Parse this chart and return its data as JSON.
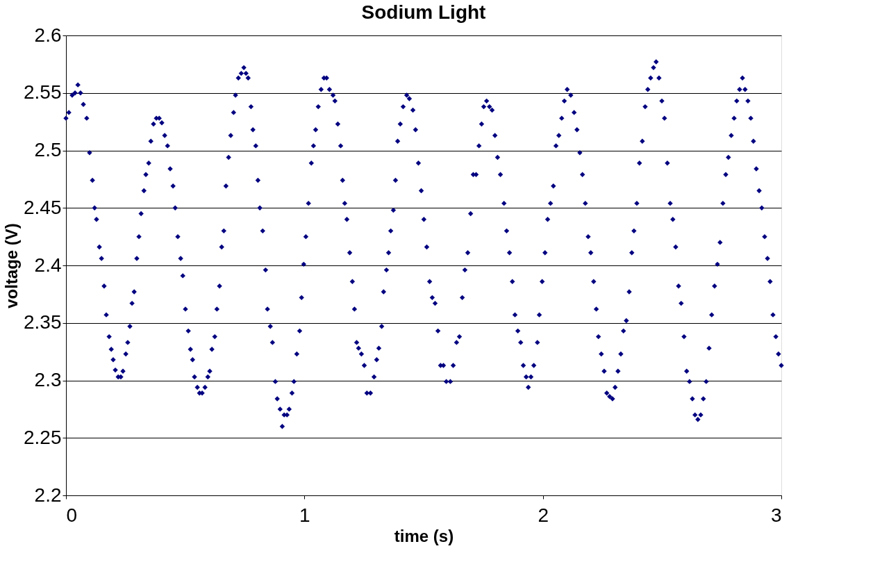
{
  "chart_data": {
    "type": "scatter",
    "title": "Sodium Light",
    "xlabel": "time (s)",
    "ylabel": "voltage (V)",
    "x": [
      0,
      0.012,
      0.026,
      0.038,
      0.05,
      0.061,
      0.073,
      0.087,
      0.099,
      0.111,
      0.12,
      0.128,
      0.14,
      0.149,
      0.16,
      0.169,
      0.181,
      0.19,
      0.198,
      0.207,
      0.219,
      0.23,
      0.239,
      0.251,
      0.259,
      0.268,
      0.277,
      0.286,
      0.297,
      0.306,
      0.315,
      0.327,
      0.335,
      0.347,
      0.356,
      0.367,
      0.379,
      0.391,
      0.402,
      0.414,
      0.426,
      0.437,
      0.449,
      0.458,
      0.469,
      0.481,
      0.49,
      0.501,
      0.513,
      0.522,
      0.531,
      0.539,
      0.551,
      0.56,
      0.571,
      0.583,
      0.595,
      0.603,
      0.612,
      0.624,
      0.633,
      0.644,
      0.653,
      0.662,
      0.671,
      0.682,
      0.691,
      0.703,
      0.711,
      0.723,
      0.735,
      0.746,
      0.755,
      0.764,
      0.776,
      0.784,
      0.796,
      0.805,
      0.813,
      0.825,
      0.837,
      0.845,
      0.857,
      0.866,
      0.878,
      0.886,
      0.898,
      0.907,
      0.915,
      0.927,
      0.936,
      0.948,
      0.956,
      0.968,
      0.98,
      0.988,
      0.997,
      1.006,
      1.017,
      1.029,
      1.038,
      1.047,
      1.058,
      1.07,
      1.082,
      1.093,
      1.105,
      1.12,
      1.128,
      1.14,
      1.152,
      1.16,
      1.169,
      1.178,
      1.19,
      1.201,
      1.21,
      1.219,
      1.227,
      1.239,
      1.251,
      1.262,
      1.277,
      1.292,
      1.303,
      1.312,
      1.324,
      1.332,
      1.344,
      1.353,
      1.362,
      1.373,
      1.382,
      1.391,
      1.402,
      1.414,
      1.429,
      1.44,
      1.455,
      1.466,
      1.478,
      1.49,
      1.501,
      1.513,
      1.525,
      1.536,
      1.548,
      1.56,
      1.571,
      1.583,
      1.595,
      1.612,
      1.624,
      1.638,
      1.65,
      1.662,
      1.673,
      1.685,
      1.697,
      1.708,
      1.72,
      1.732,
      1.743,
      1.752,
      1.764,
      1.776,
      1.787,
      1.799,
      1.81,
      1.822,
      1.837,
      1.848,
      1.86,
      1.872,
      1.883,
      1.895,
      1.907,
      1.918,
      1.93,
      1.939,
      1.95,
      1.962,
      1.977,
      1.985,
      1.997,
      2.009,
      2.02,
      2.032,
      2.044,
      2.055,
      2.067,
      2.079,
      2.09,
      2.102,
      2.117,
      2.131,
      2.143,
      2.155,
      2.166,
      2.178,
      2.19,
      2.201,
      2.213,
      2.224,
      2.233,
      2.245,
      2.257,
      2.268,
      2.28,
      2.292,
      2.303,
      2.315,
      2.327,
      2.338,
      2.35,
      2.362,
      2.373,
      2.382,
      2.394,
      2.405,
      2.417,
      2.429,
      2.44,
      2.452,
      2.464,
      2.475,
      2.487,
      2.499,
      2.51,
      2.522,
      2.534,
      2.545,
      2.557,
      2.569,
      2.58,
      2.592,
      2.603,
      2.615,
      2.627,
      2.638,
      2.65,
      2.662,
      2.673,
      2.685,
      2.697,
      2.708,
      2.72,
      2.732,
      2.743,
      2.755,
      2.767,
      2.778,
      2.79,
      2.802,
      2.813,
      2.825,
      2.837,
      2.848,
      2.86,
      2.872,
      2.883,
      2.895,
      2.907,
      2.918,
      2.93,
      2.942,
      2.953,
      2.965,
      2.977,
      2.988,
      3.0
    ],
    "series": [
      {
        "color": "#000080",
        "values": [
          2.528,
          2.533,
          2.548,
          2.55,
          2.557,
          2.55,
          2.54,
          2.528,
          2.498,
          2.474,
          2.45,
          2.44,
          2.416,
          2.406,
          2.382,
          2.357,
          2.338,
          2.327,
          2.318,
          2.309,
          2.303,
          2.303,
          2.308,
          2.323,
          2.333,
          2.347,
          2.367,
          2.377,
          2.406,
          2.425,
          2.445,
          2.465,
          2.479,
          2.489,
          2.508,
          2.523,
          2.528,
          2.528,
          2.524,
          2.513,
          2.504,
          2.484,
          2.469,
          2.45,
          2.425,
          2.406,
          2.391,
          2.362,
          2.343,
          2.327,
          2.318,
          2.303,
          2.294,
          2.289,
          2.289,
          2.294,
          2.303,
          2.308,
          2.327,
          2.338,
          2.362,
          2.382,
          2.416,
          2.43,
          2.469,
          2.494,
          2.513,
          2.533,
          2.548,
          2.563,
          2.567,
          2.572,
          2.567,
          2.563,
          2.538,
          2.518,
          2.504,
          2.474,
          2.45,
          2.43,
          2.396,
          2.362,
          2.347,
          2.333,
          2.299,
          2.284,
          2.275,
          2.26,
          2.27,
          2.27,
          2.275,
          2.289,
          2.299,
          2.323,
          2.343,
          2.372,
          2.401,
          2.425,
          2.454,
          2.489,
          2.504,
          2.518,
          2.538,
          2.553,
          2.563,
          2.563,
          2.553,
          2.548,
          2.543,
          2.523,
          2.504,
          2.474,
          2.454,
          2.44,
          2.411,
          2.386,
          2.362,
          2.333,
          2.328,
          2.323,
          2.313,
          2.289,
          2.289,
          2.303,
          2.318,
          2.328,
          2.347,
          2.377,
          2.396,
          2.411,
          2.43,
          2.448,
          2.474,
          2.508,
          2.523,
          2.538,
          2.548,
          2.545,
          2.535,
          2.518,
          2.489,
          2.465,
          2.44,
          2.416,
          2.386,
          2.372,
          2.367,
          2.343,
          2.313,
          2.313,
          2.299,
          2.299,
          2.313,
          2.333,
          2.338,
          2.372,
          2.396,
          2.411,
          2.445,
          2.479,
          2.479,
          2.504,
          2.523,
          2.538,
          2.543,
          2.538,
          2.535,
          2.513,
          2.494,
          2.479,
          2.454,
          2.43,
          2.411,
          2.386,
          2.357,
          2.343,
          2.333,
          2.313,
          2.303,
          2.294,
          2.303,
          2.313,
          2.333,
          2.357,
          2.386,
          2.411,
          2.44,
          2.454,
          2.469,
          2.504,
          2.513,
          2.528,
          2.543,
          2.553,
          2.548,
          2.533,
          2.518,
          2.498,
          2.479,
          2.454,
          2.425,
          2.411,
          2.386,
          2.362,
          2.338,
          2.323,
          2.308,
          2.289,
          2.286,
          2.284,
          2.294,
          2.308,
          2.323,
          2.343,
          2.352,
          2.377,
          2.411,
          2.43,
          2.454,
          2.489,
          2.508,
          2.538,
          2.553,
          2.563,
          2.572,
          2.577,
          2.563,
          2.543,
          2.528,
          2.489,
          2.454,
          2.44,
          2.416,
          2.382,
          2.367,
          2.338,
          2.308,
          2.299,
          2.284,
          2.27,
          2.266,
          2.27,
          2.284,
          2.299,
          2.328,
          2.357,
          2.382,
          2.401,
          2.42,
          2.454,
          2.479,
          2.494,
          2.513,
          2.528,
          2.543,
          2.553,
          2.563,
          2.553,
          2.543,
          2.528,
          2.508,
          2.484,
          2.465,
          2.45,
          2.425,
          2.406,
          2.386,
          2.357,
          2.338,
          2.323,
          2.313
        ]
      }
    ],
    "xlim": [
      0,
      3
    ],
    "xticks": [
      0,
      1,
      2,
      3
    ],
    "ylim": [
      2.2,
      2.6
    ],
    "yticks": [
      2.2,
      2.25,
      2.3,
      2.35,
      2.4,
      2.45,
      2.5,
      2.55,
      2.6
    ],
    "grid": "y",
    "legend": false,
    "marker": "diamond"
  }
}
